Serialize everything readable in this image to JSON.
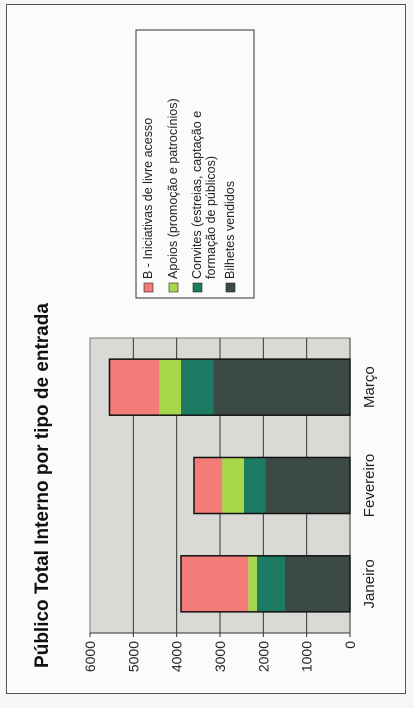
{
  "chart_data": {
    "type": "bar",
    "stacked": true,
    "title": "Público Total Interno por tipo de entrada",
    "categories": [
      "Janeiro",
      "Fevereiro",
      "Março"
    ],
    "series": [
      {
        "name": "Bilhetes vendidos",
        "color": "#3c4a45",
        "values": [
          1500,
          1950,
          3150
        ]
      },
      {
        "name": "Convites (estreias, captação e formação de públicos)",
        "color": "#1e7b63",
        "values": [
          650,
          500,
          750
        ]
      },
      {
        "name": "Apoios (promoção e patrocínios)",
        "color": "#a8d64a",
        "values": [
          200,
          500,
          500
        ]
      },
      {
        "name": "B - Iniciativas de livre acesso",
        "color": "#f47c78",
        "values": [
          1550,
          650,
          1150
        ]
      }
    ],
    "ylim": [
      0,
      6000
    ],
    "yticks": [
      0,
      1000,
      2000,
      3000,
      4000,
      5000,
      6000
    ],
    "grid": true,
    "legend_placement": "top-right",
    "legend_labels": [
      [
        "B - Iniciativas de livre acesso"
      ],
      [
        "Apoios (promoção e patrocínios)"
      ],
      [
        "Convites (estreias, captação e",
        "formação de públicos)"
      ],
      [
        "Bilhetes vendidos"
      ]
    ]
  }
}
